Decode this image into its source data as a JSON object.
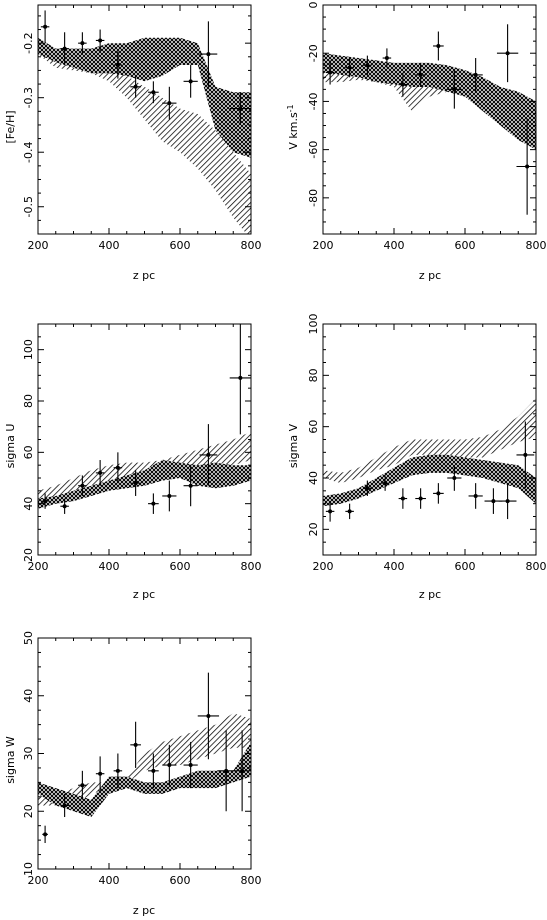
{
  "chart_data": [
    {
      "type": "scatter",
      "panel": "feh",
      "xlabel": "z pc",
      "ylabel": "[Fe/H]",
      "xlim": [
        200,
        800
      ],
      "ylim": [
        -0.55,
        -0.13
      ],
      "xticks": [
        200,
        400,
        600,
        800
      ],
      "yticks": [
        -0.5,
        -0.4,
        -0.3,
        -0.2
      ],
      "ytick_labels": [
        "-0.5",
        "-0.4",
        "-0.3",
        "-0.2"
      ],
      "points": [
        {
          "x": 220,
          "y": -0.17,
          "yerr": 0.03,
          "xerr": 12
        },
        {
          "x": 275,
          "y": -0.21,
          "yerr": 0.03,
          "xerr": 12
        },
        {
          "x": 325,
          "y": -0.2,
          "yerr": 0.02,
          "xerr": 12
        },
        {
          "x": 375,
          "y": -0.195,
          "yerr": 0.02,
          "xerr": 12
        },
        {
          "x": 425,
          "y": -0.24,
          "yerr": 0.025,
          "xerr": 12
        },
        {
          "x": 475,
          "y": -0.28,
          "yerr": 0.02,
          "xerr": 15
        },
        {
          "x": 525,
          "y": -0.29,
          "yerr": 0.02,
          "xerr": 15
        },
        {
          "x": 570,
          "y": -0.31,
          "yerr": 0.03,
          "xerr": 20
        },
        {
          "x": 630,
          "y": -0.27,
          "yerr": 0.03,
          "xerr": 20
        },
        {
          "x": 680,
          "y": -0.22,
          "yerr": 0.06,
          "xerr": 25
        },
        {
          "x": 770,
          "y": -0.32,
          "yerr": 0.03,
          "xerr": 30
        }
      ],
      "band_crosshatch": {
        "x": [
          200,
          250,
          300,
          350,
          400,
          450,
          500,
          550,
          600,
          650,
          700,
          750,
          800
        ],
        "upper": [
          -0.19,
          -0.21,
          -0.21,
          -0.21,
          -0.2,
          -0.2,
          -0.19,
          -0.19,
          -0.19,
          -0.2,
          -0.28,
          -0.29,
          -0.29
        ],
        "lower": [
          -0.22,
          -0.235,
          -0.245,
          -0.255,
          -0.255,
          -0.26,
          -0.27,
          -0.26,
          -0.24,
          -0.24,
          -0.36,
          -0.4,
          -0.41
        ]
      },
      "band_hatch": {
        "x": [
          200,
          250,
          300,
          350,
          400,
          450,
          500,
          550,
          600,
          650,
          700,
          750,
          800
        ],
        "upper": [
          -0.2,
          -0.22,
          -0.22,
          -0.23,
          -0.24,
          -0.26,
          -0.28,
          -0.3,
          -0.32,
          -0.33,
          -0.36,
          -0.4,
          -0.44
        ],
        "lower": [
          -0.22,
          -0.245,
          -0.25,
          -0.255,
          -0.27,
          -0.3,
          -0.34,
          -0.38,
          -0.4,
          -0.43,
          -0.47,
          -0.52,
          -0.56
        ]
      }
    },
    {
      "type": "scatter",
      "panel": "v",
      "xlabel": "z pc",
      "ylabel": "V km.s",
      "ylabel_sup": "-1",
      "xlim": [
        200,
        800
      ],
      "ylim": [
        -95,
        0
      ],
      "xticks": [
        200,
        400,
        600,
        800
      ],
      "yticks": [
        -80,
        -60,
        -40,
        -20,
        0
      ],
      "ytick_labels": [
        "-80",
        "-60",
        "-40",
        "-20",
        "0"
      ],
      "points": [
        {
          "x": 220,
          "y": -28,
          "yerr": 5,
          "xerr": 12
        },
        {
          "x": 275,
          "y": -26,
          "yerr": 4,
          "xerr": 12
        },
        {
          "x": 325,
          "y": -25,
          "yerr": 4,
          "xerr": 12
        },
        {
          "x": 380,
          "y": -22,
          "yerr": 4,
          "xerr": 12
        },
        {
          "x": 425,
          "y": -33,
          "yerr": 5,
          "xerr": 12
        },
        {
          "x": 475,
          "y": -29,
          "yerr": 5,
          "xerr": 15
        },
        {
          "x": 525,
          "y": -17,
          "yerr": 6,
          "xerr": 15
        },
        {
          "x": 570,
          "y": -35,
          "yerr": 8,
          "xerr": 20
        },
        {
          "x": 630,
          "y": -29,
          "yerr": 7,
          "xerr": 20
        },
        {
          "x": 720,
          "y": -20,
          "yerr": 12,
          "xerr": 30
        },
        {
          "x": 775,
          "y": -67,
          "yerr": 20,
          "xerr": 30
        }
      ],
      "band_crosshatch": {
        "x": [
          200,
          250,
          300,
          350,
          400,
          450,
          500,
          550,
          600,
          650,
          700,
          750,
          800
        ],
        "upper": [
          -20,
          -21,
          -22,
          -23,
          -24,
          -24,
          -24,
          -25,
          -27,
          -30,
          -34,
          -36,
          -40
        ],
        "lower": [
          -28,
          -29,
          -30,
          -32,
          -33,
          -34,
          -34,
          -36,
          -38,
          -44,
          -50,
          -56,
          -60
        ]
      },
      "band_hatch": {
        "x": [
          200,
          250,
          300,
          350,
          400,
          450,
          500,
          550,
          600,
          650,
          700,
          750,
          800
        ],
        "upper": [
          -24,
          -25,
          -26,
          -27,
          -28,
          -32,
          -30,
          -30,
          -29,
          -30,
          -34,
          -38,
          -42
        ],
        "lower": [
          -32,
          -32,
          -31,
          -32,
          -34,
          -44,
          -38,
          -36,
          -34,
          -36,
          -42,
          -48,
          -56
        ]
      }
    },
    {
      "type": "scatter",
      "panel": "sigma_u",
      "xlabel": "z pc",
      "ylabel": "sigma U",
      "xlim": [
        200,
        800
      ],
      "ylim": [
        20,
        110
      ],
      "xticks": [
        200,
        400,
        600,
        800
      ],
      "yticks": [
        20,
        40,
        60,
        80,
        100
      ],
      "ytick_labels": [
        "20",
        "40",
        "60",
        "80",
        "100"
      ],
      "points": [
        {
          "x": 220,
          "y": 41,
          "yerr": 3,
          "xerr": 12
        },
        {
          "x": 275,
          "y": 39,
          "yerr": 3,
          "xerr": 12
        },
        {
          "x": 325,
          "y": 47,
          "yerr": 4,
          "xerr": 12
        },
        {
          "x": 375,
          "y": 52,
          "yerr": 5,
          "xerr": 12
        },
        {
          "x": 425,
          "y": 54,
          "yerr": 6,
          "xerr": 12
        },
        {
          "x": 475,
          "y": 48,
          "yerr": 5,
          "xerr": 15
        },
        {
          "x": 525,
          "y": 40,
          "yerr": 4,
          "xerr": 15
        },
        {
          "x": 570,
          "y": 43,
          "yerr": 6,
          "xerr": 20
        },
        {
          "x": 630,
          "y": 47,
          "yerr": 8,
          "xerr": 20
        },
        {
          "x": 680,
          "y": 59,
          "yerr": 12,
          "xerr": 25
        },
        {
          "x": 770,
          "y": 89,
          "yerr": 22,
          "xerr": 30
        }
      ],
      "band_crosshatch": {
        "x": [
          200,
          250,
          300,
          350,
          400,
          450,
          500,
          550,
          600,
          650,
          700,
          750,
          800
        ],
        "upper": [
          42,
          43,
          45,
          47,
          49,
          51,
          53,
          57,
          56,
          55,
          56,
          55,
          55
        ],
        "lower": [
          38,
          40,
          41,
          43,
          45,
          46,
          47,
          49,
          50,
          47,
          46,
          47,
          49
        ]
      },
      "band_hatch": {
        "x": [
          200,
          250,
          300,
          350,
          400,
          450,
          500,
          550,
          600,
          650,
          700,
          750,
          800
        ],
        "upper": [
          45,
          47,
          50,
          53,
          55,
          56,
          56,
          57,
          59,
          61,
          63,
          65,
          68
        ],
        "lower": [
          41,
          43,
          45,
          47,
          48,
          49,
          50,
          51,
          52,
          53,
          54,
          55,
          57
        ]
      }
    },
    {
      "type": "scatter",
      "panel": "sigma_v",
      "xlabel": "z pc",
      "ylabel": "sigma V",
      "xlim": [
        200,
        800
      ],
      "ylim": [
        10,
        100
      ],
      "xticks": [
        200,
        400,
        600,
        800
      ],
      "yticks": [
        20,
        40,
        60,
        80,
        100
      ],
      "ytick_labels": [
        "20",
        "40",
        "60",
        "80",
        "100"
      ],
      "points": [
        {
          "x": 220,
          "y": 27,
          "yerr": 4,
          "xerr": 12
        },
        {
          "x": 275,
          "y": 27,
          "yerr": 3,
          "xerr": 12
        },
        {
          "x": 325,
          "y": 36,
          "yerr": 3,
          "xerr": 12
        },
        {
          "x": 375,
          "y": 38,
          "yerr": 3,
          "xerr": 12
        },
        {
          "x": 425,
          "y": 32,
          "yerr": 4,
          "xerr": 12
        },
        {
          "x": 475,
          "y": 32,
          "yerr": 4,
          "xerr": 15
        },
        {
          "x": 525,
          "y": 34,
          "yerr": 4,
          "xerr": 15
        },
        {
          "x": 570,
          "y": 40,
          "yerr": 5,
          "xerr": 20
        },
        {
          "x": 630,
          "y": 33,
          "yerr": 5,
          "xerr": 20
        },
        {
          "x": 680,
          "y": 31,
          "yerr": 5,
          "xerr": 25
        },
        {
          "x": 720,
          "y": 31,
          "yerr": 7,
          "xerr": 25
        },
        {
          "x": 770,
          "y": 49,
          "yerr": 13,
          "xerr": 25
        }
      ],
      "band_crosshatch": {
        "x": [
          200,
          250,
          300,
          350,
          400,
          450,
          500,
          550,
          600,
          650,
          700,
          750,
          800
        ],
        "upper": [
          33,
          34,
          36,
          40,
          44,
          48,
          49,
          49,
          48,
          47,
          46,
          45,
          40
        ],
        "lower": [
          29,
          30,
          32,
          35,
          38,
          41,
          42,
          42,
          41,
          40,
          38,
          36,
          30
        ]
      },
      "band_hatch": {
        "x": [
          200,
          250,
          300,
          350,
          400,
          450,
          500,
          550,
          600,
          650,
          700,
          750,
          800
        ],
        "upper": [
          43,
          42,
          44,
          48,
          52,
          55,
          55,
          55,
          55,
          56,
          59,
          64,
          71
        ],
        "lower": [
          40,
          38,
          40,
          43,
          45,
          49,
          49,
          48,
          48,
          48,
          51,
          54,
          56
        ]
      }
    },
    {
      "type": "scatter",
      "panel": "sigma_w",
      "xlabel": "z pc",
      "ylabel": "sigma W",
      "xlim": [
        200,
        800
      ],
      "ylim": [
        10,
        50
      ],
      "xticks": [
        200,
        400,
        600,
        800
      ],
      "yticks": [
        10,
        20,
        30,
        40,
        50
      ],
      "ytick_labels": [
        "10",
        "20",
        "30",
        "40",
        "50"
      ],
      "points": [
        {
          "x": 220,
          "y": 16,
          "yerr": 1.5,
          "xerr": 8
        },
        {
          "x": 275,
          "y": 21,
          "yerr": 2,
          "xerr": 12
        },
        {
          "x": 325,
          "y": 24.5,
          "yerr": 2.5,
          "xerr": 12
        },
        {
          "x": 375,
          "y": 26.5,
          "yerr": 3,
          "xerr": 12
        },
        {
          "x": 425,
          "y": 27,
          "yerr": 3,
          "xerr": 12
        },
        {
          "x": 475,
          "y": 31.5,
          "yerr": 4,
          "xerr": 15
        },
        {
          "x": 525,
          "y": 27,
          "yerr": 3,
          "xerr": 15
        },
        {
          "x": 570,
          "y": 28,
          "yerr": 3.5,
          "xerr": 20
        },
        {
          "x": 630,
          "y": 28,
          "yerr": 4,
          "xerr": 20
        },
        {
          "x": 680,
          "y": 36.5,
          "yerr": 7.5,
          "xerr": 30
        },
        {
          "x": 730,
          "y": 27,
          "yerr": 7,
          "xerr": 25
        },
        {
          "x": 775,
          "y": 27,
          "yerr": 7,
          "xerr": 25
        }
      ],
      "band_crosshatch": {
        "x": [
          200,
          250,
          300,
          350,
          400,
          450,
          500,
          550,
          600,
          650,
          700,
          750,
          800
        ],
        "upper": [
          25,
          24,
          23,
          22,
          26,
          26,
          25,
          25,
          26,
          27,
          27,
          27,
          32
        ],
        "lower": [
          23,
          21,
          20,
          19,
          23,
          24,
          23,
          23,
          24,
          24,
          24,
          25,
          26
        ]
      },
      "band_hatch": {
        "x": [
          200,
          250,
          300,
          350,
          400,
          450,
          500,
          550,
          600,
          650,
          700,
          750,
          800
        ],
        "upper": [
          23,
          23,
          24,
          25,
          25,
          26,
          30,
          32,
          33,
          34,
          35,
          37,
          36
        ],
        "lower": [
          21,
          21,
          21,
          23,
          24,
          25,
          27,
          28,
          28,
          29,
          30,
          31,
          31
        ]
      }
    }
  ]
}
